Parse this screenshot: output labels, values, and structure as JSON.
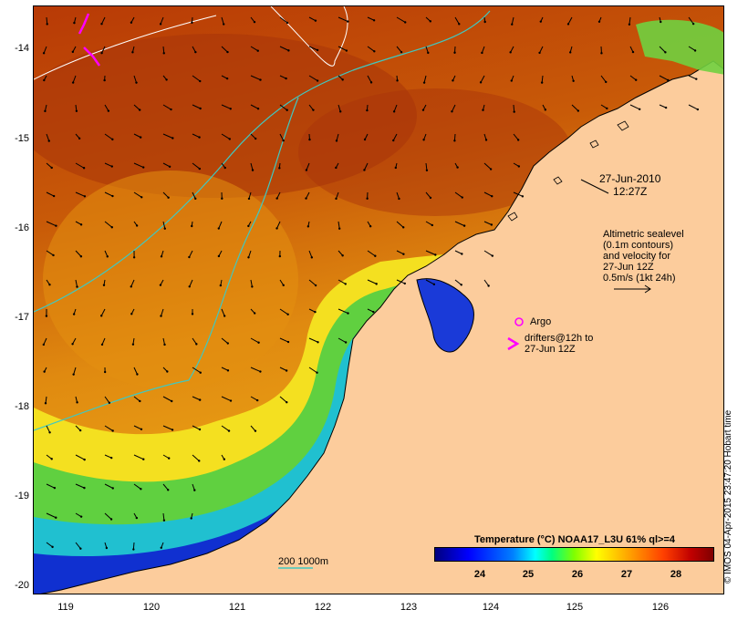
{
  "map": {
    "y_ticks": [
      "-14",
      "-15",
      "-16",
      "-17",
      "-18",
      "-19",
      "-20"
    ],
    "x_ticks": [
      "119",
      "120",
      "121",
      "122",
      "123",
      "124",
      "125",
      "126"
    ],
    "lon_range": [
      118.65,
      126.7
    ],
    "lat_range": [
      -20.1,
      -13.6
    ],
    "colors": {
      "land": "#fccc9c",
      "contour": "#40c8c0",
      "sealevel_contour": "#ffffff",
      "drifter": "#ff00ff"
    }
  },
  "annotations": {
    "date": "27-Jun-2010",
    "time": "12:27Z",
    "altimetric_lines": [
      "Altimetric sealevel",
      "(0.1m contours)",
      "and velocity for",
      "27-Jun 12Z",
      "0.5m/s (1kt 24h)"
    ],
    "argo_label": "Argo",
    "drifters_lines": [
      "drifters@12h to",
      "27-Jun 12Z"
    ],
    "depth_legend": "200  1000m"
  },
  "colorbar": {
    "title": "Temperature (°C) NOAA17_L3U 61% ql>=4",
    "ticks": [
      "24",
      "25",
      "26",
      "27",
      "28"
    ],
    "range": [
      23,
      28.7
    ]
  },
  "credit": "© IMOS 04-Apr-2015 23:47:20 Hobart time"
}
